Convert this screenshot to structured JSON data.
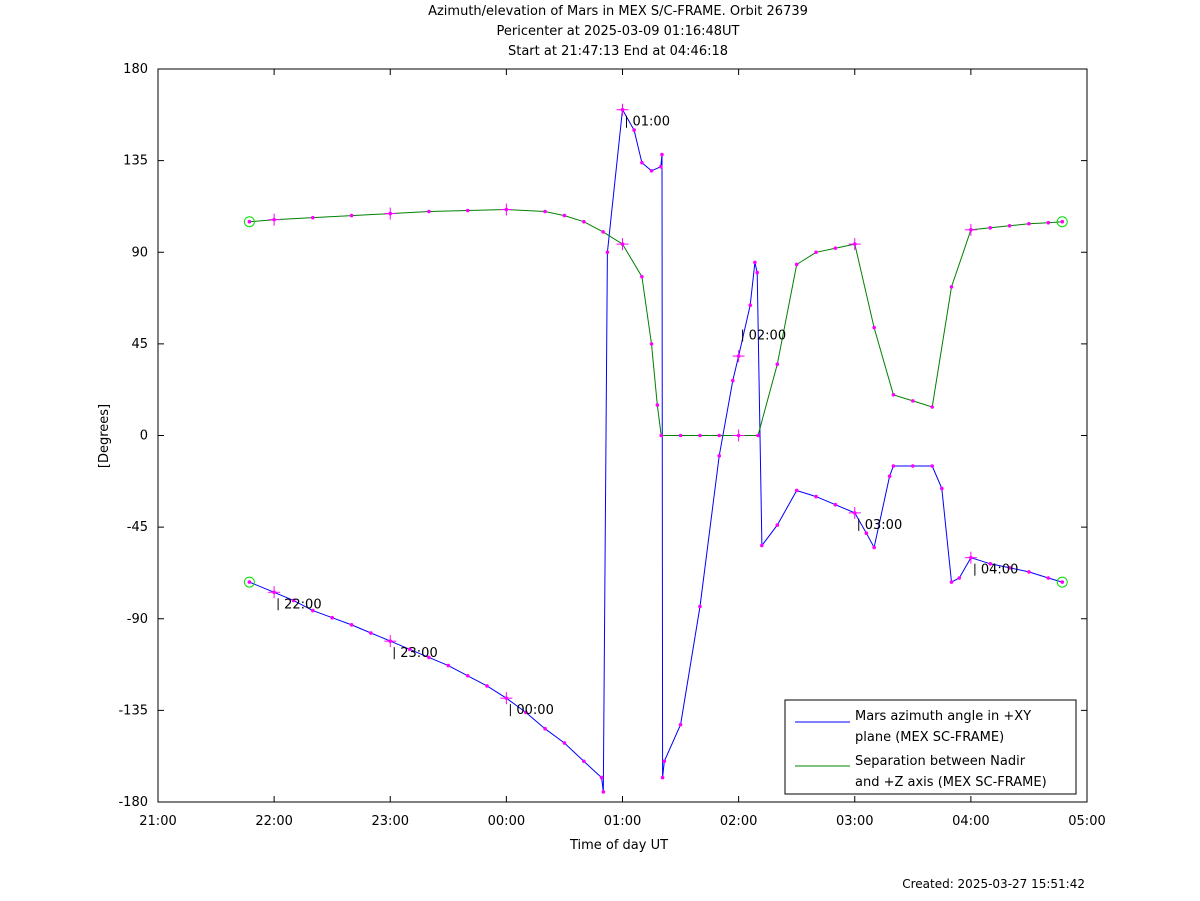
{
  "title": {
    "line1": "Azimuth/elevation of Mars in MEX S/C-FRAME.  Orbit 26739",
    "line2": "Pericenter at 2025-03-09 01:16:48UT",
    "line3": "Start at 21:47:13 End at 04:46:18"
  },
  "footer": {
    "created": "Created: 2025-03-27 15:51:42"
  },
  "colors": {
    "azimuth": "#0000ff",
    "separation": "#008000",
    "marker": "#ff00ff",
    "endpoint": "#00dd00"
  },
  "chart_data": {
    "type": "line",
    "xlabel": "Time of day UT",
    "ylabel": "[Degrees]",
    "x_unit": "hours since 21:00 UT",
    "xlim": [
      0,
      8
    ],
    "ylim": [
      -180,
      180
    ],
    "x_ticks": [
      {
        "v": 0,
        "label": "21:00"
      },
      {
        "v": 1,
        "label": "22:00"
      },
      {
        "v": 2,
        "label": "23:00"
      },
      {
        "v": 3,
        "label": "00:00"
      },
      {
        "v": 4,
        "label": "01:00"
      },
      {
        "v": 5,
        "label": "02:00"
      },
      {
        "v": 6,
        "label": "03:00"
      },
      {
        "v": 7,
        "label": "04:00"
      },
      {
        "v": 8,
        "label": "05:00"
      }
    ],
    "y_ticks": [
      {
        "v": 180,
        "label": "180"
      },
      {
        "v": 135,
        "label": "135"
      },
      {
        "v": 90,
        "label": "90"
      },
      {
        "v": 45,
        "label": "45"
      },
      {
        "v": 0,
        "label": "0"
      },
      {
        "v": -45,
        "label": "-45"
      },
      {
        "v": -90,
        "label": "-90"
      },
      {
        "v": -135,
        "label": "-135"
      },
      {
        "v": -180,
        "label": "-180"
      }
    ],
    "legend_position": "bottom-right",
    "series": [
      {
        "name": "Mars azimuth angle in +XY plane (MEX SC-FRAME)",
        "legend_lines": [
          "Mars azimuth angle in +XY",
          "plane (MEX SC-FRAME)"
        ],
        "color": "#0000ff",
        "x": [
          0.787,
          1.0,
          1.167,
          1.333,
          1.5,
          1.667,
          1.833,
          2.0,
          2.167,
          2.333,
          2.5,
          2.667,
          2.833,
          3.0,
          3.167,
          3.333,
          3.5,
          3.667,
          3.82,
          3.835,
          3.87,
          4.0,
          4.1,
          4.167,
          4.25,
          4.33,
          4.34,
          4.345,
          4.36,
          4.5,
          4.667,
          4.833,
          4.95,
          5.0,
          5.1,
          5.14,
          5.16,
          5.2,
          5.333,
          5.5,
          5.667,
          5.833,
          6.0,
          6.1,
          6.167,
          6.3,
          6.333,
          6.5,
          6.667,
          6.75,
          6.833,
          6.9,
          7.0,
          7.167,
          7.333,
          7.5,
          7.667,
          7.787
        ],
        "y": [
          -72,
          -77,
          -81,
          -86,
          -89.5,
          -93,
          -97,
          -101,
          -105,
          -109,
          -113,
          -118,
          -123,
          -129,
          -136,
          -144,
          -151,
          -160,
          -168,
          -175,
          90,
          160,
          150,
          134,
          130,
          132,
          138,
          -168,
          -160,
          -142,
          -84,
          -10,
          27,
          39,
          64,
          85,
          80,
          -54,
          -44,
          -27,
          -30,
          -34,
          -38,
          -48,
          -55,
          -20,
          -15,
          -15,
          -15,
          -26,
          -72,
          -70,
          -60,
          -63,
          -65,
          -67,
          -70,
          -72
        ]
      },
      {
        "name": "Separation between Nadir and +Z axis (MEX SC-FRAME)",
        "legend_lines": [
          "Separation between Nadir",
          "and +Z axis (MEX SC-FRAME)"
        ],
        "color": "#008000",
        "x": [
          0.787,
          1.0,
          1.333,
          1.667,
          2.0,
          2.333,
          2.667,
          3.0,
          3.333,
          3.5,
          3.667,
          3.833,
          4.0,
          4.167,
          4.25,
          4.3,
          4.333,
          4.5,
          4.667,
          4.833,
          5.0,
          5.167,
          5.333,
          5.5,
          5.667,
          5.833,
          6.0,
          6.167,
          6.333,
          6.5,
          6.667,
          6.833,
          7.0,
          7.167,
          7.333,
          7.5,
          7.667,
          7.787
        ],
        "y": [
          105,
          106,
          107,
          108,
          109,
          110,
          110.5,
          111,
          110,
          108,
          105,
          100,
          94,
          78,
          45,
          15,
          0,
          0,
          0,
          0,
          0,
          0,
          35,
          84,
          90,
          92,
          94,
          53,
          20,
          17,
          14,
          73,
          101,
          102,
          103,
          104,
          104.5,
          105
        ]
      }
    ],
    "time_labels": [
      {
        "x": 1.0,
        "y": -77,
        "label": "22:00"
      },
      {
        "x": 2.0,
        "y": -101,
        "label": "23:00"
      },
      {
        "x": 3.0,
        "y": -129,
        "label": "00:00"
      },
      {
        "x": 4.0,
        "y": 160,
        "label": "01:00"
      },
      {
        "x": 5.0,
        "y": 55,
        "label": "02:00"
      },
      {
        "x": 6.0,
        "y": -38,
        "label": "03:00"
      },
      {
        "x": 7.0,
        "y": -60,
        "label": "04:00"
      }
    ]
  }
}
